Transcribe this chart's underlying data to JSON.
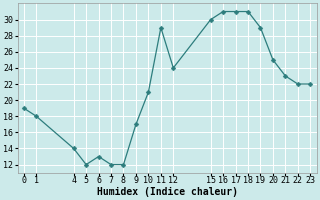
{
  "x": [
    0,
    1,
    4,
    5,
    6,
    7,
    8,
    9,
    10,
    11,
    12,
    15,
    16,
    17,
    18,
    19,
    20,
    21,
    22,
    23
  ],
  "y": [
    19,
    18,
    14,
    12,
    13,
    12,
    12,
    17,
    21,
    29,
    24,
    30,
    31,
    31,
    31,
    29,
    25,
    23,
    22,
    22
  ],
  "line_color": "#2d7d7d",
  "marker": "D",
  "marker_size": 2.5,
  "bg_color": "#cceaea",
  "grid_color": "#ffffff",
  "xlabel": "Humidex (Indice chaleur)",
  "xlabel_fontsize": 7,
  "tick_fontsize": 6,
  "ylim": [
    11,
    32
  ],
  "yticks": [
    12,
    14,
    16,
    18,
    20,
    22,
    24,
    26,
    28,
    30
  ],
  "xtick_positions": [
    0,
    1,
    4,
    5,
    6,
    7,
    8,
    9,
    10,
    11,
    12,
    15,
    16,
    17,
    18,
    19,
    20,
    21,
    22,
    23
  ],
  "xtick_labels": [
    "0",
    "1",
    "4",
    "5",
    "6",
    "7",
    "8",
    "9",
    "101112",
    "",
    "",
    "151617181920212223",
    "",
    "",
    "",
    "",
    "",
    "",
    "",
    ""
  ],
  "xlim": [
    -0.5,
    23.5
  ]
}
